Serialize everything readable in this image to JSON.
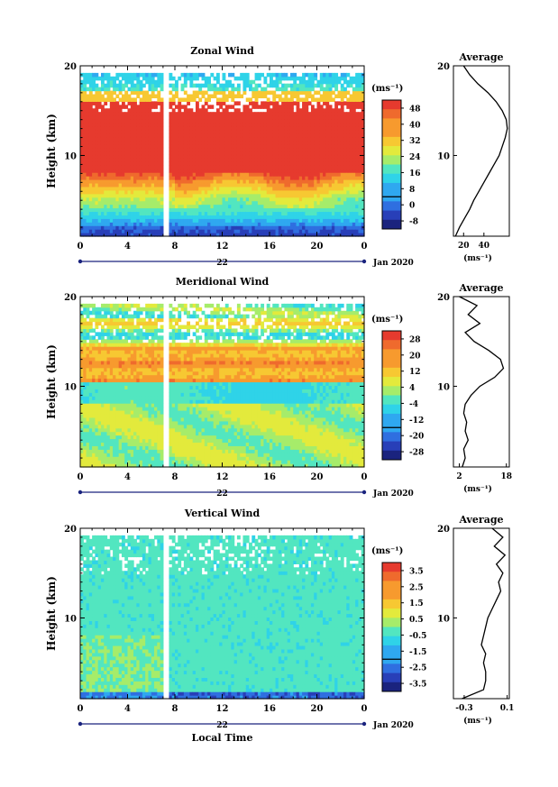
{
  "xaxis": {
    "ticks": [
      "0",
      "4",
      "8",
      "12",
      "16",
      "20",
      "0"
    ],
    "date_label": "22",
    "month_label": "Jan 2020",
    "xlabel": "Local Time"
  },
  "colors": {
    "jet": [
      "#1a237e",
      "#283fb8",
      "#2f6fe0",
      "#2fa8f0",
      "#2fd3e8",
      "#52e6c0",
      "#a6ec6a",
      "#e3ea3c",
      "#f7c832",
      "#f79a2e",
      "#ef6a2d",
      "#e63a2e"
    ]
  },
  "chart_data": [
    {
      "type": "heatmap",
      "title": "Zonal Wind",
      "ylabel": "Height (km)",
      "yticks": [
        "10",
        "20"
      ],
      "ylim": [
        1,
        20
      ],
      "xlim": [
        0,
        24
      ],
      "gap_hours": [
        7.0,
        7.6
      ],
      "colorbar": {
        "unit": "(ms⁻¹)",
        "min": -8,
        "max": 48,
        "labels": [
          "48",
          "40",
          "32",
          "24",
          "16",
          "8",
          "0",
          "-8"
        ],
        "contour_at": "0"
      },
      "profile": {
        "title": "Average",
        "xlabel": "(ms⁻¹)",
        "xticks": [
          "20",
          "40"
        ],
        "xlim": [
          10,
          65
        ],
        "heights": [
          1,
          2,
          3,
          4,
          5,
          6,
          7,
          8,
          9,
          10,
          11,
          12,
          13,
          14,
          15,
          16,
          17,
          18,
          19,
          20
        ],
        "values": [
          12,
          16,
          21,
          26,
          30,
          35,
          40,
          45,
          50,
          55,
          58,
          61,
          63,
          62,
          58,
          52,
          44,
          34,
          26,
          20
        ]
      }
    },
    {
      "type": "heatmap",
      "title": "Meridional Wind",
      "ylabel": "Height (km)",
      "yticks": [
        "10",
        "20"
      ],
      "ylim": [
        1,
        20
      ],
      "xlim": [
        0,
        24
      ],
      "gap_hours": [
        7.0,
        7.6
      ],
      "colorbar": {
        "unit": "(ms⁻¹)",
        "min": -28,
        "max": 28,
        "labels": [
          "28",
          "20",
          "12",
          "4",
          "-4",
          "-12",
          "-20",
          "-28"
        ],
        "contour_at": "0"
      },
      "profile": {
        "title": "Average",
        "xlabel": "(ms⁻¹)",
        "xticks": [
          "2",
          "18"
        ],
        "xlim": [
          0,
          19
        ],
        "heights": [
          1,
          2,
          3,
          4,
          5,
          6,
          7,
          8,
          9,
          10,
          11,
          12,
          13,
          14,
          15,
          16,
          17,
          18,
          19,
          20
        ],
        "values": [
          3,
          4,
          3.5,
          5,
          4,
          4.5,
          3.5,
          4,
          6,
          9,
          14,
          17,
          16,
          12,
          7,
          4,
          9,
          5,
          8,
          2
        ]
      }
    },
    {
      "type": "heatmap",
      "title": "Vertical Wind",
      "ylabel": "Height (km)",
      "yticks": [
        "10",
        "20"
      ],
      "ylim": [
        1,
        20
      ],
      "xlim": [
        0,
        24
      ],
      "gap_hours": [
        7.0,
        7.6
      ],
      "colorbar": {
        "unit": "(ms⁻¹)",
        "min": -4,
        "max": 4,
        "labels": [
          "3.5",
          "2.5",
          "1.5",
          "0.5",
          "-0.5",
          "-1.5",
          "-2.5",
          "-3.5"
        ],
        "contour_at": "0"
      },
      "profile": {
        "title": "Average",
        "xlabel": "(ms⁻¹)",
        "xticks": [
          "-0.3",
          "0.1"
        ],
        "xlim": [
          -0.4,
          0.12
        ],
        "heights": [
          1,
          2,
          3,
          4,
          5,
          6,
          7,
          8,
          9,
          10,
          11,
          12,
          13,
          14,
          15,
          16,
          17,
          18,
          19,
          20
        ],
        "values": [
          -0.32,
          -0.12,
          -0.1,
          -0.1,
          -0.12,
          -0.1,
          -0.14,
          -0.12,
          -0.1,
          -0.08,
          -0.04,
          0.0,
          0.04,
          0.02,
          0.06,
          0.0,
          0.08,
          -0.02,
          0.06,
          -0.04
        ]
      }
    }
  ]
}
